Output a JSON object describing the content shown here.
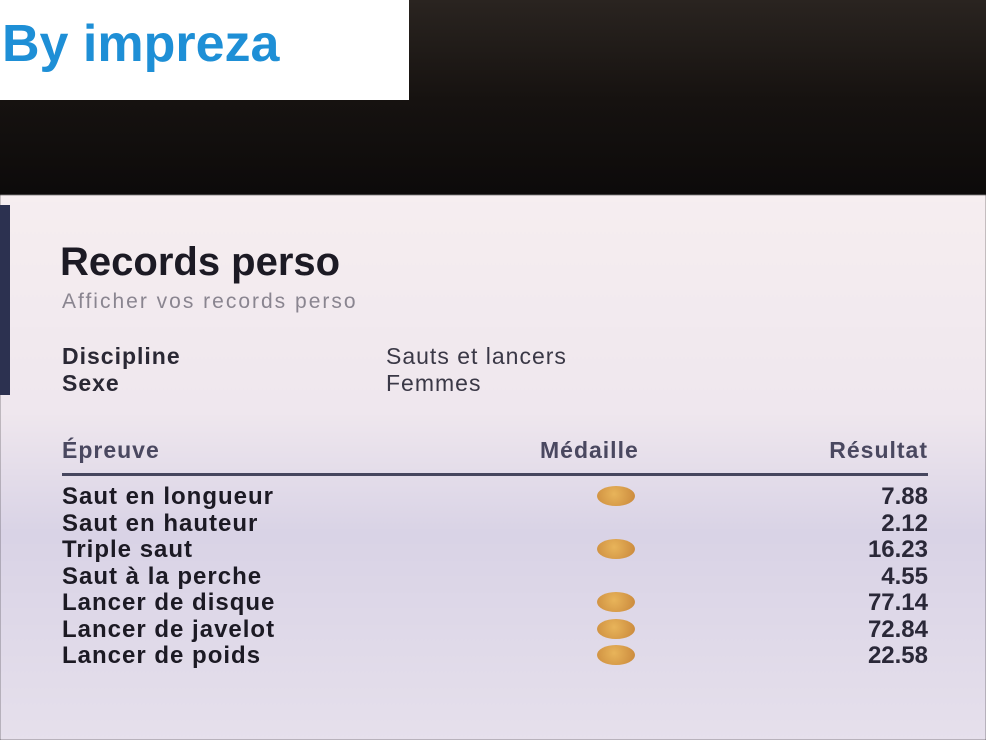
{
  "watermark": "By impreza",
  "title": "Records perso",
  "subtitle": "Afficher vos records perso",
  "filters": [
    {
      "label": "Discipline",
      "value": "Sauts et lancers"
    },
    {
      "label": "Sexe",
      "value": "Femmes"
    }
  ],
  "table": {
    "headers": [
      "Épreuve",
      "Médaille",
      "Résultat"
    ],
    "medal_color": "#d9a04a",
    "rows": [
      {
        "event": "Saut en longueur",
        "medal": true,
        "result": "7.88"
      },
      {
        "event": "Saut en hauteur",
        "medal": false,
        "result": "2.12"
      },
      {
        "event": "Triple saut",
        "medal": true,
        "result": "16.23"
      },
      {
        "event": "Saut à la perche",
        "medal": false,
        "result": "4.55"
      },
      {
        "event": "Lancer de disque",
        "medal": true,
        "result": "77.14"
      },
      {
        "event": "Lancer de javelot",
        "medal": true,
        "result": "72.84"
      },
      {
        "event": "Lancer de poids",
        "medal": true,
        "result": "22.58"
      }
    ]
  }
}
